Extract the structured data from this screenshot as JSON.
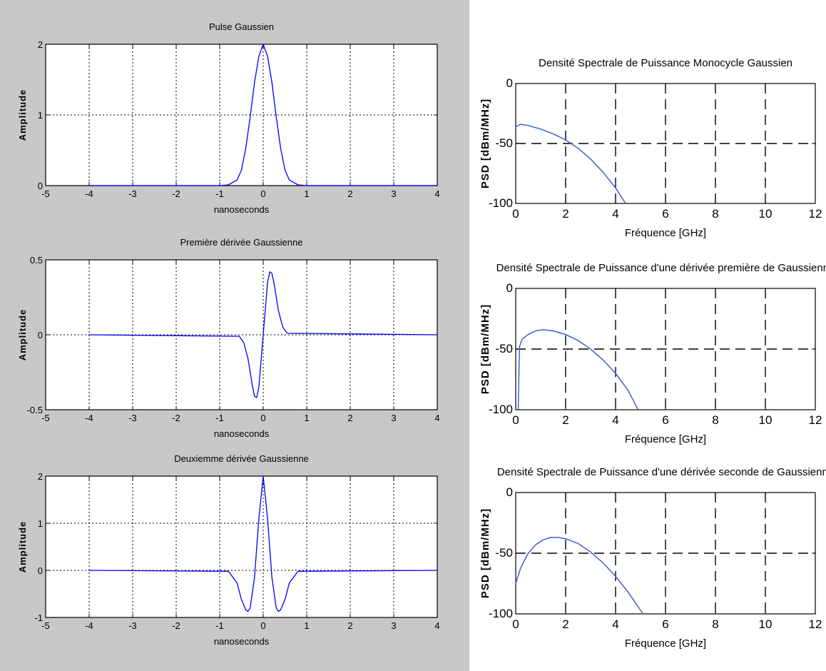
{
  "chart_data": [
    {
      "type": "line",
      "title": "Pulse Gaussien",
      "xlabel": "nanoseconds",
      "ylabel": "Amplitude",
      "xlim": [
        -5,
        4
      ],
      "ylim": [
        0,
        2
      ],
      "xticks": [
        -5,
        -4,
        -3,
        -2,
        -1,
        0,
        1,
        2,
        3,
        4
      ],
      "yticks": [
        0,
        1,
        2
      ],
      "grid": "dotted",
      "series": [
        {
          "x": [
            -4,
            -1.0,
            -0.8,
            -0.6,
            -0.5,
            -0.4,
            -0.3,
            -0.2,
            -0.1,
            0,
            0.1,
            0.2,
            0.3,
            0.4,
            0.5,
            0.6,
            0.8,
            1.0,
            4
          ],
          "y": [
            0,
            0.0,
            0.01,
            0.08,
            0.22,
            0.53,
            0.97,
            1.46,
            1.83,
            2.0,
            1.83,
            1.46,
            0.97,
            0.53,
            0.22,
            0.08,
            0.01,
            0.0,
            0
          ]
        }
      ],
      "color": "#0000ff"
    },
    {
      "type": "line",
      "title": "Première dérivée Gaussienne",
      "xlabel": "nanoseconds",
      "ylabel": "Amplitude",
      "xlim": [
        -5,
        4
      ],
      "ylim": [
        -0.5,
        0.5
      ],
      "xticks": [
        -5,
        -4,
        -3,
        -2,
        -1,
        0,
        1,
        2,
        3,
        4
      ],
      "yticks": [
        -0.5,
        0,
        0.5
      ],
      "grid": "dotted",
      "series": [
        {
          "x": [
            -4,
            -0.55,
            -0.45,
            -0.35,
            -0.25,
            -0.2,
            -0.15,
            -0.1,
            0,
            0.1,
            0.15,
            0.2,
            0.25,
            0.35,
            0.45,
            0.55,
            4
          ],
          "y": [
            0,
            -0.01,
            -0.05,
            -0.16,
            -0.34,
            -0.41,
            -0.42,
            -0.35,
            0,
            0.35,
            0.42,
            0.41,
            0.34,
            0.16,
            0.05,
            0.01,
            0
          ]
        }
      ],
      "color": "#0000ff"
    },
    {
      "type": "line",
      "title": "Deuxiemme dérivée Gaussienne",
      "xlabel": "nanoseconds",
      "ylabel": "Amplitude",
      "xlim": [
        -5,
        4
      ],
      "ylim": [
        -1,
        2
      ],
      "xticks": [
        -5,
        -4,
        -3,
        -2,
        -1,
        0,
        1,
        2,
        3,
        4
      ],
      "yticks": [
        -1,
        0,
        1,
        2
      ],
      "grid": "dotted",
      "series": [
        {
          "x": [
            -4,
            -0.8,
            -0.6,
            -0.5,
            -0.4,
            -0.35,
            -0.3,
            -0.2,
            -0.1,
            0,
            0.1,
            0.2,
            0.3,
            0.35,
            0.4,
            0.5,
            0.6,
            0.8,
            4
          ],
          "y": [
            0,
            -0.02,
            -0.27,
            -0.62,
            -0.84,
            -0.87,
            -0.8,
            -0.15,
            1.1,
            2.0,
            1.1,
            -0.15,
            -0.8,
            -0.87,
            -0.84,
            -0.62,
            -0.27,
            -0.02,
            0
          ]
        }
      ],
      "color": "#0000ff"
    },
    {
      "type": "line",
      "title": "Densité Spectrale de Puissance Monocycle Gaussien",
      "xlabel": "Fréquence [GHz]",
      "ylabel": "PSD [dBm/MHz]",
      "xlim": [
        0,
        12
      ],
      "ylim": [
        -100,
        0
      ],
      "xticks": [
        0,
        2,
        4,
        6,
        8,
        10,
        12
      ],
      "yticks": [
        -100,
        -50,
        0
      ],
      "grid": "dashed",
      "series": [
        {
          "x": [
            0,
            0.2,
            0.5,
            1,
            1.5,
            2,
            2.5,
            3,
            3.5,
            4,
            4.4
          ],
          "y": [
            -36,
            -34,
            -35,
            -38,
            -42,
            -47,
            -54,
            -63,
            -74,
            -87,
            -100
          ]
        }
      ],
      "color": "#4060d0"
    },
    {
      "type": "line",
      "title": "Densité Spectrale de Puissance d'une dérivée première de Gaussienne",
      "xlabel": "Fréquence [GHz]",
      "ylabel": "PSD [dBm/MHz]",
      "xlim": [
        0,
        12
      ],
      "ylim": [
        -100,
        0
      ],
      "xticks": [
        0,
        2,
        4,
        6,
        8,
        10,
        12
      ],
      "yticks": [
        -100,
        -50,
        0
      ],
      "grid": "dashed",
      "series": [
        {
          "x": [
            0.1,
            0.15,
            0.25,
            0.5,
            0.8,
            1.1,
            1.5,
            2,
            2.5,
            3,
            3.5,
            4,
            4.5,
            4.9
          ],
          "y": [
            -100,
            -48,
            -42,
            -38,
            -35,
            -34,
            -35,
            -38,
            -43,
            -50,
            -59,
            -70,
            -84,
            -100
          ]
        }
      ],
      "color": "#4060d0"
    },
    {
      "type": "line",
      "title": "Densité Spectrale de Puissance d'une dérivée seconde de Gaussienne",
      "xlabel": "Fréquence [GHz]",
      "ylabel": "PSD [dBm/MHz]",
      "xlim": [
        0,
        12
      ],
      "ylim": [
        -100,
        0
      ],
      "xticks": [
        0,
        2,
        4,
        6,
        8,
        10,
        12
      ],
      "yticks": [
        -100,
        -50,
        0
      ],
      "grid": "dashed",
      "series": [
        {
          "x": [
            0,
            0.2,
            0.5,
            0.8,
            1.1,
            1.4,
            1.7,
            2,
            2.5,
            3,
            3.5,
            4,
            4.5,
            5.1
          ],
          "y": [
            -75,
            -62,
            -50,
            -43,
            -39,
            -37,
            -37,
            -38,
            -42,
            -49,
            -58,
            -69,
            -82,
            -100
          ]
        }
      ],
      "color": "#4060d0"
    }
  ]
}
